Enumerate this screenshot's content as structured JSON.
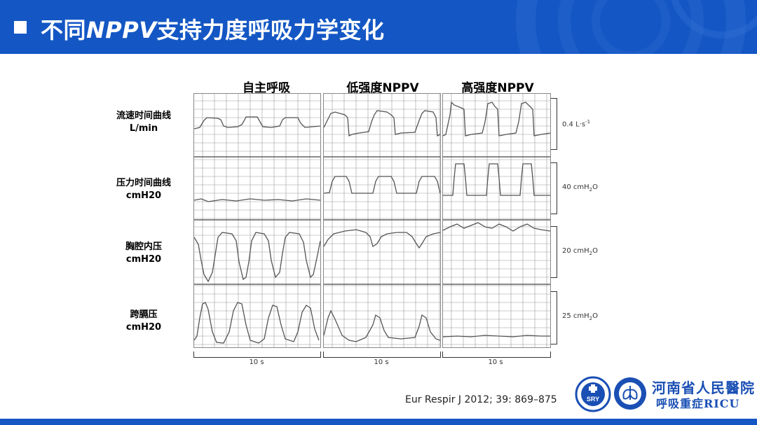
{
  "slide": {
    "title_prefix": "不同",
    "title_italic": "NPPV",
    "title_suffix": "支持力度呼吸力学变化"
  },
  "columns": [
    "自主呼吸",
    "低强度NPPV",
    "高强度NPPV"
  ],
  "rows": [
    {
      "line1": "流速时间曲线",
      "line2": "L/min",
      "scale_main": "0.4 L·s",
      "scale_sup": "-1",
      "scale_sub": ""
    },
    {
      "line1": "压力时间曲线",
      "line2": "cmH20",
      "scale_main": "40 cmH",
      "scale_sub": "2",
      "scale_tail": "O"
    },
    {
      "line1": "胸腔内压",
      "line2": "cmH20",
      "scale_main": "20 cmH",
      "scale_sub": "2",
      "scale_tail": "O"
    },
    {
      "line1": "跨膈压",
      "line2": "cmH20",
      "scale_main": "25 cmH",
      "scale_sub": "2",
      "scale_tail": "O"
    }
  ],
  "time_labels": [
    "10 s",
    "10 s",
    "10 s"
  ],
  "citation": "Eur Respir J 2012; 39: 869–875",
  "logo": {
    "badge_text": "SRY",
    "line1": "河南省人民醫院",
    "line2": "呼吸重症RICU"
  },
  "colors": {
    "brand_blue": "#1457c4",
    "trace": "#555555",
    "grid": "#9a9a9a"
  }
}
